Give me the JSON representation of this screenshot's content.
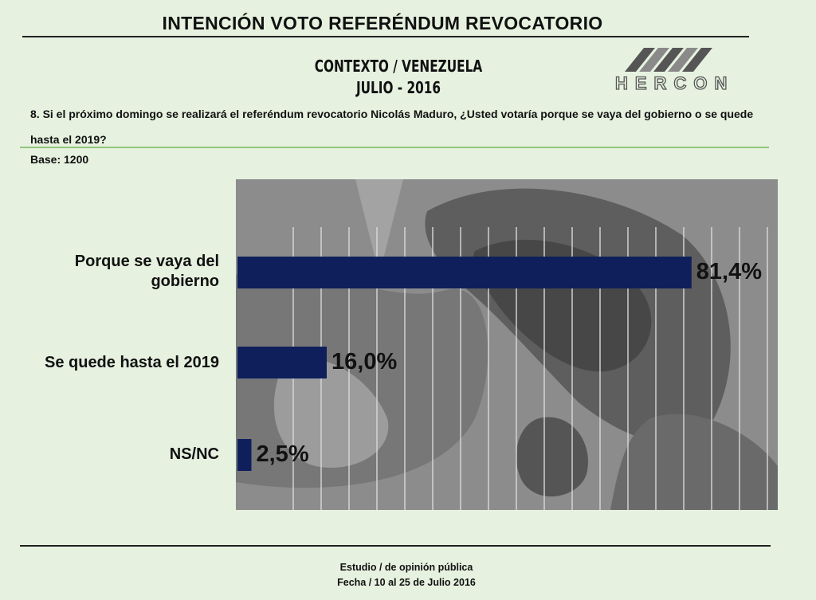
{
  "title": "INTENCIÓN VOTO REFERÉNDUM REVOCATORIO",
  "context_line1": "CONTEXTO / VENEZUELA",
  "context_line2": "JULIO - 2016",
  "logo": {
    "text": "HERCON",
    "color_dark": "#555555",
    "color_light": "#8a8a8a"
  },
  "question": "8. Si el próximo domingo se realizará el referéndum revocatorio Nicolás Maduro, ¿Usted votaría porque se vaya del gobierno o se quede hasta el 2019?",
  "base": "Base: 1200",
  "footer_line1": "Estudio / de opinión pública",
  "footer_line2": "Fecha / 10 al 25 de  Julio 2016",
  "colors": {
    "bar": "#0e1f5c",
    "background": "#e6f1df",
    "plot_background": "#8f8f8f"
  },
  "chart_data": {
    "type": "bar",
    "orientation": "horizontal",
    "categories": [
      "Porque se vaya del gobierno",
      "Se quede hasta el 2019",
      "NS/NC"
    ],
    "values": [
      81.4,
      16.0,
      2.5
    ],
    "value_labels": [
      "81,4%",
      "16,0%",
      "2,5%"
    ],
    "title": "",
    "xlabel": "",
    "ylabel": "",
    "xlim": [
      0,
      100
    ],
    "grid": true
  }
}
